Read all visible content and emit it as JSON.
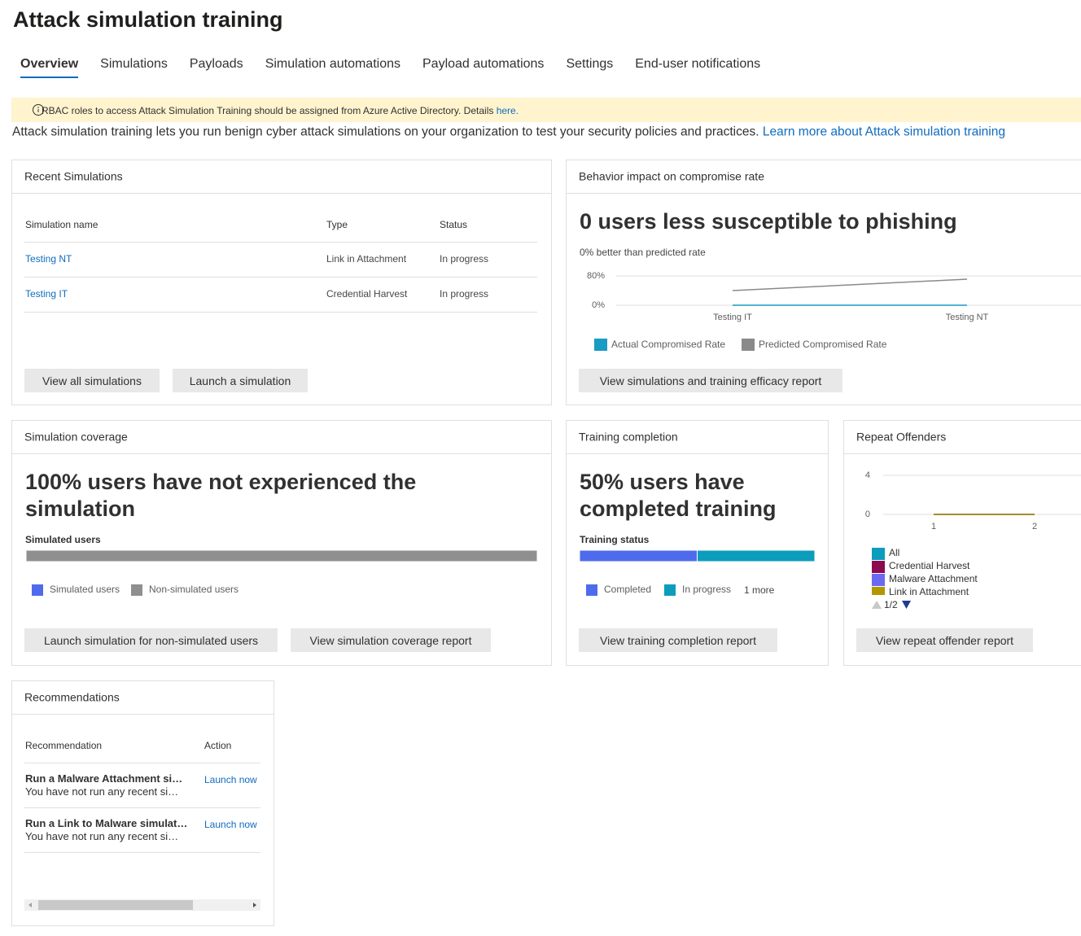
{
  "header": {
    "title": "Attack simulation training"
  },
  "tabs": [
    "Overview",
    "Simulations",
    "Payloads",
    "Simulation automations",
    "Payload automations",
    "Settings",
    "End-user notifications"
  ],
  "banner": {
    "text": "RBAC roles to access Attack Simulation Training should be assigned from Azure Active Directory. Details",
    "link": "here."
  },
  "intro": {
    "text": "Attack simulation training lets you run benign cyber attack simulations on your organization to test your security policies and practices.",
    "link": "Learn more about Attack simulation training"
  },
  "recent_simulations": {
    "title": "Recent Simulations",
    "columns": [
      "Simulation name",
      "Type",
      "Status"
    ],
    "rows": [
      [
        "Testing NT",
        "Link in Attachment",
        "In progress"
      ],
      [
        "Testing IT",
        "Credential Harvest",
        "In progress"
      ]
    ],
    "buttons": [
      "View all simulations",
      "Launch a simulation"
    ]
  },
  "behavior_impact": {
    "title": "Behavior impact on compromise rate",
    "headline": "0 users less susceptible to phishing",
    "subtitle": "0% better than predicted rate",
    "chart_data": {
      "type": "line",
      "categories": [
        "Testing IT",
        "Testing NT"
      ],
      "series": [
        {
          "name": "Actual Compromised Rate",
          "color": "#1a9bc4",
          "values": [
            0,
            0
          ]
        },
        {
          "name": "Predicted Compromised Rate",
          "color": "#8a8a8a",
          "values": [
            40,
            71
          ]
        }
      ],
      "ylim": [
        0,
        80
      ],
      "yticks": [
        {
          "value": 0,
          "label": "0%"
        },
        {
          "value": 80,
          "label": "80%"
        }
      ],
      "grid": true
    },
    "button": "View simulations and training efficacy report"
  },
  "simulation_coverage": {
    "title": "Simulation coverage",
    "headline": "100% users have not experienced the simulation",
    "bar_label": "Simulated users",
    "chart_data": {
      "type": "stacked_bar",
      "series": [
        {
          "name": "Simulated users",
          "color": "#4f6bed",
          "values": [
            0
          ]
        },
        {
          "name": "Non-simulated users",
          "color": "#8f8f8f",
          "values": [
            100
          ]
        }
      ]
    },
    "buttons": [
      "Launch simulation for non-simulated users",
      "View simulation coverage report"
    ]
  },
  "training_completion": {
    "title": "Training completion",
    "headline": "50% users have completed training",
    "bar_label": "Training status",
    "chart_data": {
      "type": "stacked_bar",
      "series": [
        {
          "name": "Completed",
          "color": "#4f6bed",
          "values": [
            50
          ]
        },
        {
          "name": "In progress",
          "color": "#0b9dbb",
          "values": [
            50
          ]
        }
      ]
    },
    "legend_more": "1 more",
    "button": "View training completion report"
  },
  "repeat_offenders": {
    "title": "Repeat Offenders",
    "chart_data": {
      "type": "line",
      "x": [
        1,
        2
      ],
      "series": [
        {
          "name": "All",
          "color": "#0b9dbb",
          "values": [
            0,
            0
          ]
        },
        {
          "name": "Credential Harvest",
          "color": "#8b0a50",
          "values": [
            0,
            0
          ]
        },
        {
          "name": "Malware Attachment",
          "color": "#6b69f0",
          "values": [
            0,
            0
          ]
        },
        {
          "name": "Link in Attachment",
          "color": "#b39700",
          "values": [
            0,
            0
          ]
        }
      ],
      "xlim": [
        0.5,
        2.5
      ],
      "xticks": [
        1,
        2
      ],
      "ylim": [
        0,
        4
      ],
      "yticks": [
        0,
        4
      ],
      "grid": true
    },
    "legend_page": "1/2",
    "button": "View repeat offender report"
  },
  "recommendations": {
    "title": "Recommendations",
    "columns": [
      "Recommendation",
      "Action"
    ],
    "rows": [
      {
        "title": "Run a Malware Attachment si…",
        "description": "You have not run any recent si…",
        "action": "Launch now"
      },
      {
        "title": "Run a Link to Malware simulat…",
        "description": "You have not run any recent si…",
        "action": "Launch now"
      }
    ]
  }
}
